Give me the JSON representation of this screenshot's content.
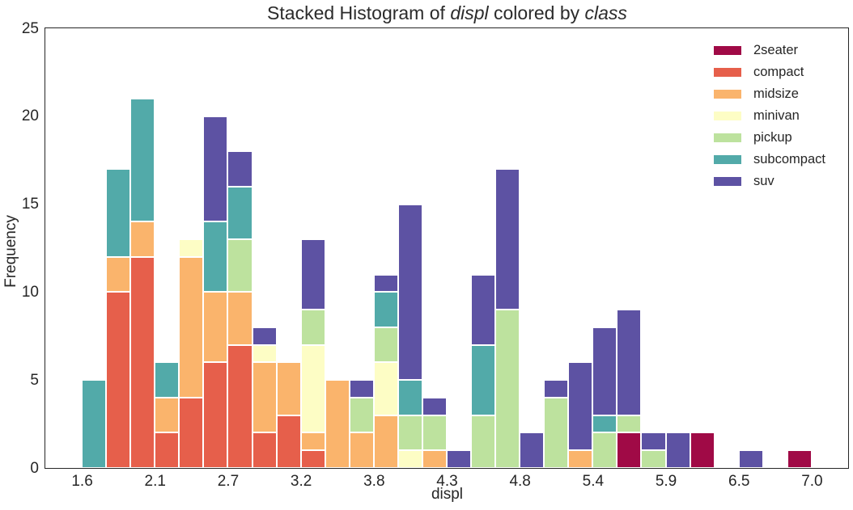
{
  "title": {
    "part1": "Stacked Histogram of ",
    "var1": "displ",
    "part2": " colored by ",
    "var2": "class"
  },
  "chart_data": {
    "type": "bar",
    "subtype": "stacked-histogram",
    "title": "Stacked Histogram of displ colored by class",
    "title_italic_words": [
      "displ",
      "class"
    ],
    "xlabel": "displ",
    "ylabel": "Frequency",
    "bin_start": 1.6,
    "bin_width": 0.18,
    "n_bins": 30,
    "xlim": [
      1.33,
      7.27
    ],
    "ylim": [
      0,
      25
    ],
    "x_tick_values": [
      1.6,
      2.14,
      2.68,
      3.22,
      3.76,
      4.3,
      4.84,
      5.38,
      5.92,
      6.46,
      7.0
    ],
    "x_tick_labels": [
      "1.6",
      "2.1",
      "2.7",
      "3.2",
      "3.8",
      "4.3",
      "4.8",
      "5.4",
      "5.9",
      "6.5",
      "7.0"
    ],
    "y_ticks": [
      0,
      5,
      10,
      15,
      20,
      25
    ],
    "grid": false,
    "legend_position": "upper right",
    "bar_edge_color": "#ffffff",
    "spine_color": "#262626",
    "text_color": "#262626",
    "stack_order_bottom_to_top": [
      "2seater",
      "compact",
      "midsize",
      "minivan",
      "pickup",
      "subcompact",
      "suv"
    ],
    "series": [
      {
        "name": "2seater",
        "color": "#a00a46",
        "values": [
          0,
          0,
          0,
          0,
          0,
          0,
          0,
          0,
          0,
          0,
          0,
          0,
          0,
          0,
          0,
          0,
          0,
          0,
          0,
          0,
          0,
          0,
          2,
          0,
          0,
          2,
          0,
          0,
          0,
          1
        ]
      },
      {
        "name": "compact",
        "color": "#e65f4b",
        "values": [
          0,
          10,
          12,
          2,
          4,
          6,
          7,
          2,
          3,
          1,
          0,
          0,
          0,
          0,
          0,
          0,
          0,
          0,
          0,
          0,
          0,
          0,
          0,
          0,
          0,
          0,
          0,
          0,
          0,
          0
        ]
      },
      {
        "name": "midsize",
        "color": "#fab46c",
        "values": [
          0,
          2,
          2,
          2,
          8,
          4,
          3,
          4,
          3,
          1,
          5,
          2,
          3,
          0,
          1,
          0,
          0,
          0,
          0,
          0,
          1,
          0,
          0,
          0,
          0,
          0,
          0,
          0,
          0,
          0
        ]
      },
      {
        "name": "minivan",
        "color": "#fdfdc5",
        "values": [
          0,
          0,
          0,
          0,
          1,
          0,
          0,
          1,
          0,
          5,
          0,
          0,
          3,
          1,
          0,
          0,
          0,
          0,
          0,
          0,
          0,
          0,
          0,
          0,
          0,
          0,
          0,
          0,
          0,
          0
        ]
      },
      {
        "name": "pickup",
        "color": "#bde29e",
        "values": [
          0,
          0,
          0,
          0,
          0,
          0,
          3,
          0,
          0,
          2,
          0,
          2,
          2,
          2,
          2,
          0,
          3,
          9,
          0,
          4,
          0,
          2,
          1,
          1,
          0,
          0,
          0,
          0,
          0,
          0
        ]
      },
      {
        "name": "subcompact",
        "color": "#52aaa9",
        "values": [
          5,
          5,
          7,
          2,
          0,
          4,
          3,
          0,
          0,
          0,
          0,
          0,
          2,
          2,
          0,
          0,
          4,
          0,
          0,
          0,
          0,
          1,
          0,
          0,
          0,
          0,
          0,
          0,
          0,
          0
        ]
      },
      {
        "name": "suv",
        "color": "#5d52a3",
        "values": [
          0,
          0,
          0,
          0,
          0,
          6,
          2,
          1,
          0,
          4,
          0,
          1,
          1,
          10,
          1,
          1,
          4,
          8,
          2,
          1,
          5,
          5,
          6,
          1,
          2,
          0,
          0,
          1,
          0,
          0
        ]
      }
    ]
  }
}
